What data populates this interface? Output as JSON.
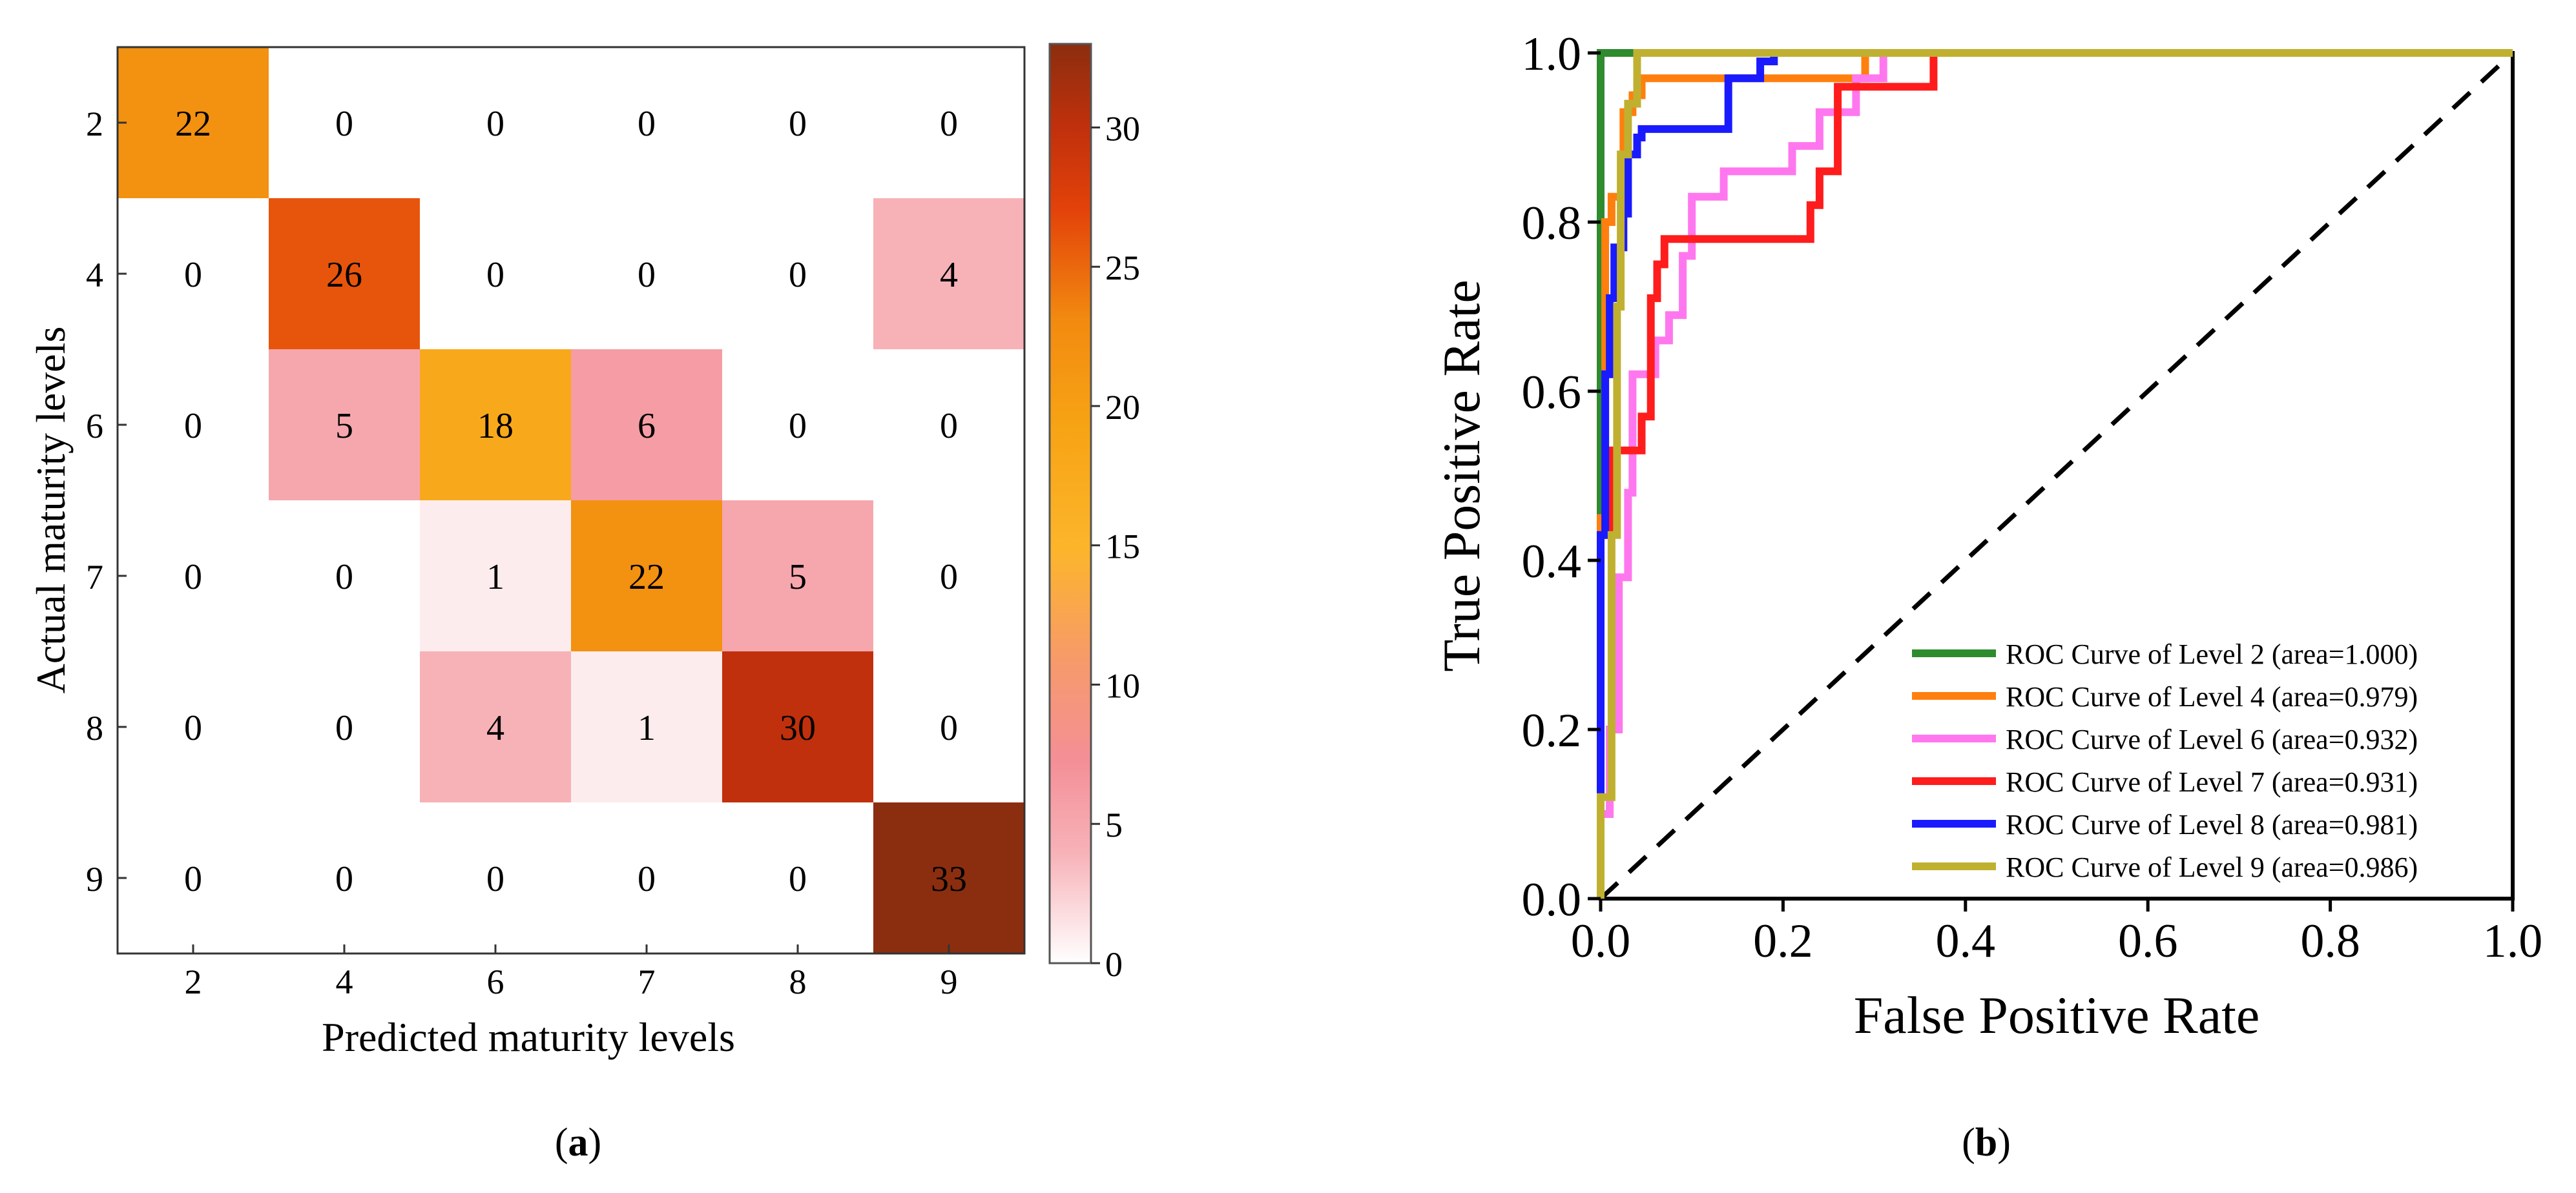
{
  "chart_data": [
    {
      "type": "heatmap",
      "panel_label": "a",
      "xlabel": "Predicted maturity levels",
      "ylabel": "Actual maturity levels",
      "x_categories": [
        "2",
        "4",
        "6",
        "7",
        "8",
        "9"
      ],
      "y_categories": [
        "2",
        "4",
        "6",
        "7",
        "8",
        "9"
      ],
      "values": [
        [
          22,
          0,
          0,
          0,
          0,
          0
        ],
        [
          0,
          26,
          0,
          0,
          0,
          4
        ],
        [
          0,
          5,
          18,
          6,
          0,
          0
        ],
        [
          0,
          0,
          1,
          22,
          5,
          0
        ],
        [
          0,
          0,
          4,
          1,
          30,
          0
        ],
        [
          0,
          0,
          0,
          0,
          0,
          33
        ]
      ],
      "colorbar": {
        "min": 0,
        "max": 33,
        "ticks": [
          "0",
          "5",
          "10",
          "15",
          "20",
          "25",
          "30"
        ]
      },
      "colors": {
        "low": "#ffffff",
        "pink": "#f48f97",
        "orange": "#f5a623",
        "dark": "#8b2e0f"
      }
    },
    {
      "type": "line",
      "panel_label": "b",
      "xlabel": "False Positive Rate",
      "ylabel": "True Positive Rate",
      "xlim": [
        0,
        1
      ],
      "ylim": [
        0,
        1
      ],
      "x_ticks": [
        "0.0",
        "0.2",
        "0.4",
        "0.6",
        "0.8",
        "1.0"
      ],
      "y_ticks": [
        "0.0",
        "0.2",
        "0.4",
        "0.6",
        "0.8",
        "1.0"
      ],
      "legend_position": "bottom-right",
      "series": [
        {
          "name": "ROC Curve of Level 2 (area=1.000)",
          "color": "#2e8b2e",
          "points": [
            [
              0,
              0
            ],
            [
              0,
              1
            ],
            [
              1,
              1
            ]
          ]
        },
        {
          "name": "ROC Curve of Level 4 (area=0.979)",
          "color": "#ff7f0e",
          "points": [
            [
              0,
              0
            ],
            [
              0,
              0.45
            ],
            [
              0.005,
              0.45
            ],
            [
              0.005,
              0.8
            ],
            [
              0.012,
              0.8
            ],
            [
              0.012,
              0.83
            ],
            [
              0.025,
              0.83
            ],
            [
              0.025,
              0.93
            ],
            [
              0.035,
              0.93
            ],
            [
              0.035,
              0.95
            ],
            [
              0.045,
              0.95
            ],
            [
              0.045,
              0.97
            ],
            [
              0.29,
              0.97
            ],
            [
              0.29,
              1
            ],
            [
              1,
              1
            ]
          ]
        },
        {
          "name": "ROC Curve of Level 6 (area=0.932)",
          "color": "#ff77ee",
          "points": [
            [
              0,
              0
            ],
            [
              0,
              0.1
            ],
            [
              0.01,
              0.1
            ],
            [
              0.01,
              0.2
            ],
            [
              0.02,
              0.2
            ],
            [
              0.02,
              0.38
            ],
            [
              0.03,
              0.38
            ],
            [
              0.03,
              0.48
            ],
            [
              0.035,
              0.48
            ],
            [
              0.035,
              0.62
            ],
            [
              0.06,
              0.62
            ],
            [
              0.06,
              0.66
            ],
            [
              0.075,
              0.66
            ],
            [
              0.075,
              0.69
            ],
            [
              0.09,
              0.69
            ],
            [
              0.09,
              0.76
            ],
            [
              0.1,
              0.76
            ],
            [
              0.1,
              0.83
            ],
            [
              0.135,
              0.83
            ],
            [
              0.135,
              0.86
            ],
            [
              0.21,
              0.86
            ],
            [
              0.21,
              0.89
            ],
            [
              0.24,
              0.89
            ],
            [
              0.24,
              0.93
            ],
            [
              0.28,
              0.93
            ],
            [
              0.28,
              0.97
            ],
            [
              0.31,
              0.97
            ],
            [
              0.31,
              1
            ],
            [
              1,
              1
            ]
          ]
        },
        {
          "name": "ROC Curve of Level 7 (area=0.931)",
          "color": "#ff1c1c",
          "points": [
            [
              0,
              0
            ],
            [
              0,
              0.43
            ],
            [
              0.01,
              0.43
            ],
            [
              0.01,
              0.53
            ],
            [
              0.045,
              0.53
            ],
            [
              0.045,
              0.57
            ],
            [
              0.055,
              0.57
            ],
            [
              0.055,
              0.71
            ],
            [
              0.062,
              0.71
            ],
            [
              0.062,
              0.75
            ],
            [
              0.07,
              0.75
            ],
            [
              0.07,
              0.78
            ],
            [
              0.23,
              0.78
            ],
            [
              0.23,
              0.82
            ],
            [
              0.24,
              0.82
            ],
            [
              0.24,
              0.86
            ],
            [
              0.26,
              0.86
            ],
            [
              0.26,
              0.96
            ],
            [
              0.365,
              0.96
            ],
            [
              0.365,
              1
            ],
            [
              1,
              1
            ]
          ]
        },
        {
          "name": "ROC Curve of Level 8 (area=0.981)",
          "color": "#1a1aff",
          "points": [
            [
              0,
              0
            ],
            [
              0,
              0.43
            ],
            [
              0.005,
              0.43
            ],
            [
              0.005,
              0.62
            ],
            [
              0.01,
              0.62
            ],
            [
              0.01,
              0.71
            ],
            [
              0.015,
              0.71
            ],
            [
              0.015,
              0.77
            ],
            [
              0.025,
              0.77
            ],
            [
              0.025,
              0.81
            ],
            [
              0.03,
              0.81
            ],
            [
              0.03,
              0.88
            ],
            [
              0.04,
              0.88
            ],
            [
              0.04,
              0.9
            ],
            [
              0.045,
              0.9
            ],
            [
              0.045,
              0.91
            ],
            [
              0.14,
              0.91
            ],
            [
              0.14,
              0.97
            ],
            [
              0.175,
              0.97
            ],
            [
              0.175,
              0.99
            ],
            [
              0.19,
              0.99
            ],
            [
              0.19,
              1
            ],
            [
              1,
              1
            ]
          ]
        },
        {
          "name": "ROC Curve of Level 9 (area=0.986)",
          "color": "#c0b030",
          "points": [
            [
              0,
              0
            ],
            [
              0,
              0.12
            ],
            [
              0.012,
              0.12
            ],
            [
              0.012,
              0.43
            ],
            [
              0.018,
              0.43
            ],
            [
              0.018,
              0.7
            ],
            [
              0.022,
              0.7
            ],
            [
              0.022,
              0.88
            ],
            [
              0.03,
              0.88
            ],
            [
              0.03,
              0.94
            ],
            [
              0.04,
              0.94
            ],
            [
              0.04,
              1
            ],
            [
              1,
              1
            ]
          ]
        }
      ]
    }
  ]
}
